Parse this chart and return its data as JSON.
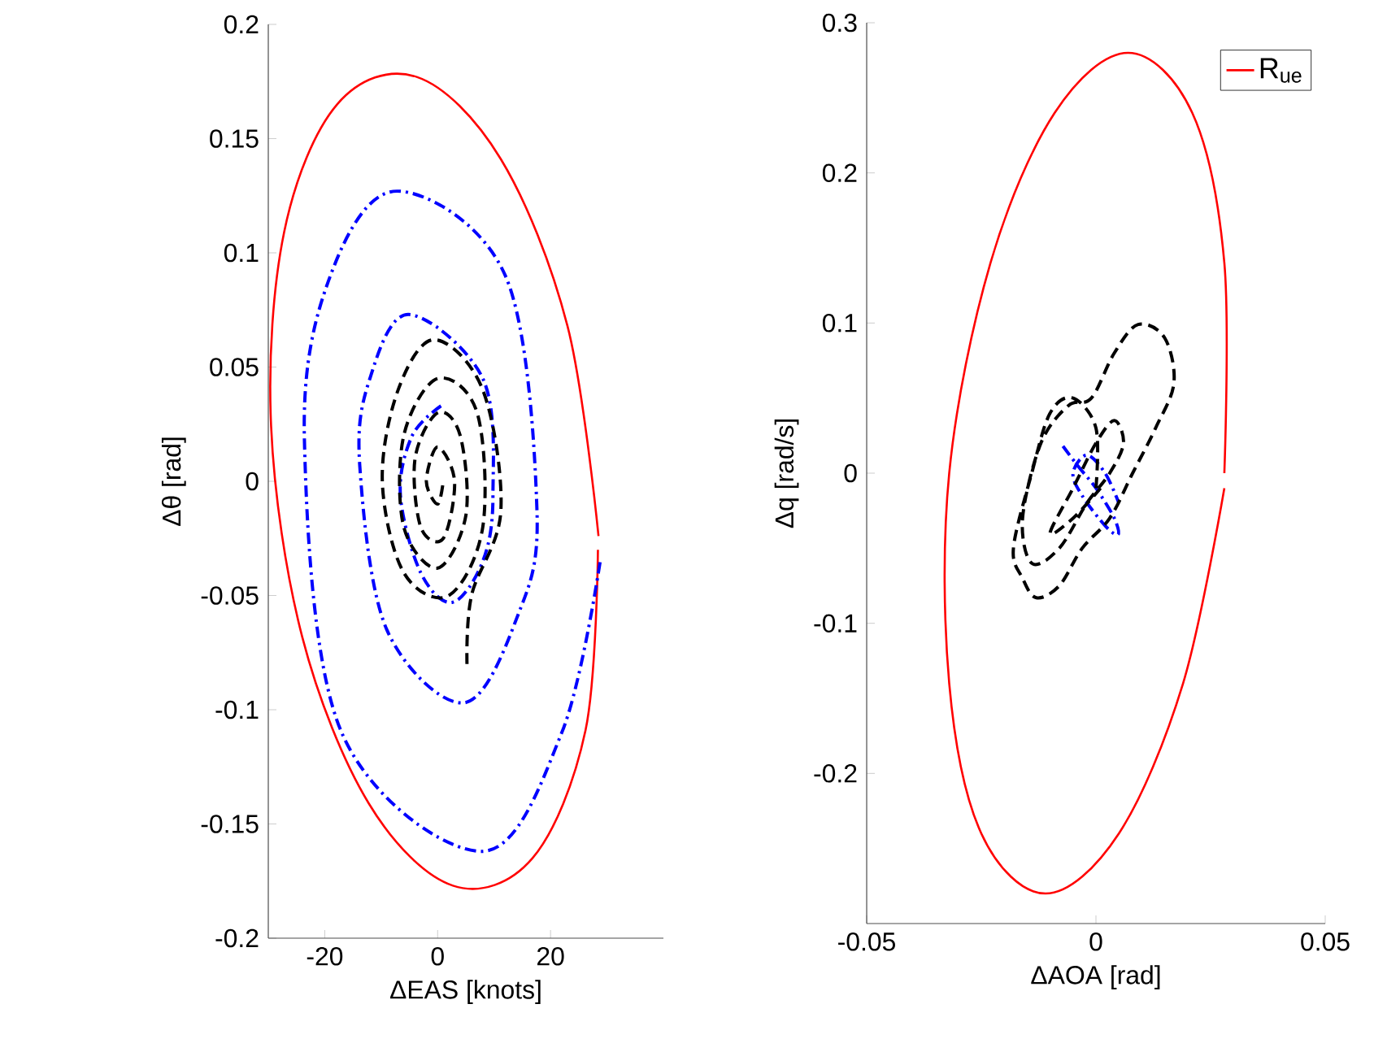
{
  "chart_data": [
    {
      "type": "line",
      "xlabel": "ΔEAS [knots]",
      "ylabel": "Δθ [rad]",
      "xlim": [
        -30,
        40
      ],
      "ylim": [
        -0.2,
        0.2
      ],
      "xticks": [
        -20,
        0,
        20
      ],
      "yticks": [
        -0.2,
        -0.15,
        -0.1,
        -0.05,
        0,
        0.05,
        0.1,
        0.15,
        0.2
      ],
      "grid": false,
      "legend": false,
      "marker": "none",
      "series": [
        {
          "color": "#ff0000",
          "line_style": "solid",
          "x": [
            28.5,
            23.0,
            11.2,
            -3.7,
            -17.8,
            -27.2,
            -29.5,
            -24.0,
            -12.2,
            2.7,
            16.8,
            26.2,
            28.4
          ],
          "values": [
            -0.024,
            0.068,
            0.141,
            0.177,
            0.165,
            0.109,
            0.024,
            -0.068,
            -0.141,
            -0.177,
            -0.165,
            -0.109,
            -0.03
          ]
        },
        {
          "color": "#0000ff",
          "line_style": "dashdot",
          "x": [
            0.6,
            -4.5,
            -6.6,
            -3,
            2.6,
            8,
            9.8,
            8,
            -5.2,
            -12,
            -13.8,
            -9,
            4.6,
            14,
            17.6,
            12,
            -7.2,
            -19,
            -23.6,
            -17,
            7.8,
            22,
            28.8
          ],
          "values": [
            0.033,
            0.02,
            -0.006,
            -0.04,
            -0.053,
            -0.035,
            -0.006,
            0.045,
            0.073,
            0.045,
            0.007,
            -0.065,
            -0.097,
            -0.06,
            -0.013,
            0.09,
            0.127,
            0.09,
            0.018,
            -0.11,
            -0.162,
            -0.11,
            -0.035
          ]
        },
        {
          "color": "#000000",
          "line_style": "dashed",
          "x": [
            5.2,
            6,
            11.2,
            8,
            -0.6,
            -7,
            -9.8,
            -6,
            2,
            8,
            7,
            0,
            -6,
            -6,
            0,
            5,
            4,
            0,
            -4,
            -3,
            1,
            3,
            0,
            -2,
            0,
            1
          ],
          "values": [
            -0.08,
            -0.05,
            -0.013,
            0.04,
            0.062,
            0.04,
            0.0,
            -0.04,
            -0.05,
            -0.02,
            0.03,
            0.045,
            0.02,
            -0.02,
            -0.038,
            -0.015,
            0.02,
            0.03,
            0.01,
            -0.02,
            -0.025,
            0,
            0.015,
            0,
            -0.01,
            0
          ]
        }
      ]
    },
    {
      "type": "line",
      "xlabel": "ΔAOA [rad]",
      "ylabel": "Δq [rad/s]",
      "xlim": [
        -0.05,
        0.05
      ],
      "ylim": [
        -0.3,
        0.3
      ],
      "xticks": [
        -0.05,
        0,
        0.05
      ],
      "yticks": [
        -0.2,
        -0.1,
        0,
        0.1,
        0.2,
        0.3
      ],
      "grid": false,
      "legend": "top right",
      "marker": "none",
      "series": [
        {
          "name": "R$_{ue}$",
          "color": "#ff0000",
          "line_style": "solid",
          "x": [
            0.028,
            0.028,
            0.021,
            0.007,
            -0.009,
            -0.023,
            -0.032,
            -0.032,
            -0.025,
            -0.011,
            0.005,
            0.019,
            0.028
          ],
          "values": [
            0.0,
            0.14,
            0.24,
            0.28,
            0.24,
            0.14,
            0.0,
            -0.14,
            -0.24,
            -0.28,
            -0.24,
            -0.14,
            -0.01
          ]
        },
        {
          "color": "#0000ff",
          "line_style": "dashdot",
          "x": [
            -0.0072,
            -0.004,
            0,
            0.004,
            0.0048,
            0.002,
            -0.003,
            -0.005,
            -0.002,
            0.002,
            0.005
          ],
          "values": [
            0.018,
            0.005,
            -0.01,
            -0.03,
            -0.041,
            -0.035,
            -0.015,
            0.0,
            0.012,
            0.0,
            -0.02
          ]
        },
        {
          "color": "#000000",
          "line_style": "dashed",
          "x": [
            0.0,
            0.0,
            -0.005,
            -0.01,
            -0.014,
            -0.018,
            -0.016,
            -0.013,
            -0.008,
            -0.003,
            0.003,
            0.008,
            0.013,
            0.017,
            0.015,
            0.0092,
            0.004,
            -0.001,
            -0.006,
            -0.012,
            -0.016,
            -0.014,
            -0.008,
            -0.002,
            0.003,
            0.006,
            0.004,
            0.0,
            -0.005,
            -0.01,
            -0.005,
            0.001
          ],
          "values": [
            -0.01,
            0.03,
            0.05,
            0.04,
            0.0,
            -0.05,
            -0.07,
            -0.083,
            -0.075,
            -0.05,
            -0.03,
            0.0,
            0.03,
            0.06,
            0.09,
            0.099,
            0.08,
            0.05,
            0.045,
            0.02,
            -0.03,
            -0.06,
            -0.05,
            -0.02,
            0.0,
            0.02,
            0.035,
            0.02,
            -0.01,
            -0.04,
            -0.03,
            -0.01
          ]
        }
      ]
    }
  ]
}
